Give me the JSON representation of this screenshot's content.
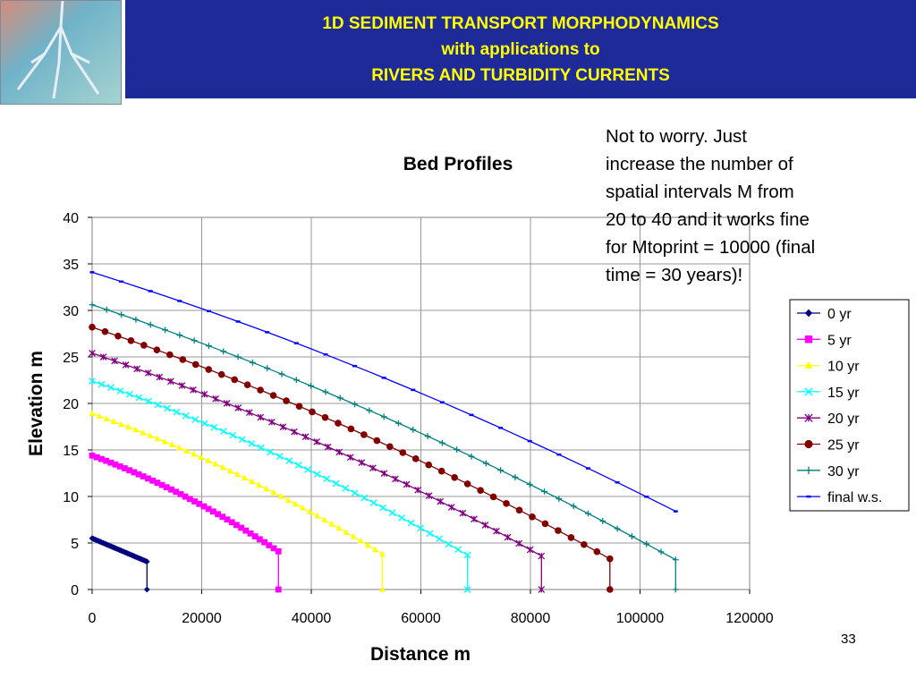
{
  "header": {
    "logo_icon": "river-delta-image",
    "title_lines": [
      "1D SEDIMENT TRANSPORT MORPHODYNAMICS",
      "with applications to",
      "RIVERS AND TURBIDITY CURRENTS"
    ],
    "colors": {
      "band": "#1f2a99",
      "title_text": "#ffff00"
    }
  },
  "note": {
    "lines": [
      "Not to worry.  Just",
      "increase the number of",
      "spatial intervals M from",
      "20 to 40 and it works fine",
      "for Mtoprint = 10000 (final",
      "time = 30 years)!"
    ]
  },
  "slide_number": "33",
  "chart_data": {
    "type": "line",
    "title": "Bed Profiles",
    "xlabel": "Distance m",
    "ylabel": "Elevation m",
    "xlim": [
      0,
      120000
    ],
    "ylim": [
      0,
      40
    ],
    "xticks": [
      0,
      20000,
      40000,
      60000,
      80000,
      100000,
      120000
    ],
    "yticks": [
      0,
      5,
      10,
      15,
      20,
      25,
      30,
      35,
      40
    ],
    "grid": true,
    "legend_position": "right",
    "series": [
      {
        "name": "0 yr",
        "color": "#000080",
        "marker": "diamond",
        "n": 40,
        "x_end": 10000,
        "y_start": 5.5,
        "y_end": 3.0,
        "curve": 0.0,
        "drop_to_zero": true
      },
      {
        "name": "5 yr",
        "color": "#ff00ff",
        "marker": "square",
        "n": 40,
        "x_end": 34000,
        "y_start": 14.4,
        "y_end": 4.1,
        "curve": 0.32,
        "drop_to_zero": true
      },
      {
        "name": "10 yr",
        "color": "#ffff00",
        "marker": "triangle",
        "n": 40,
        "x_end": 53000,
        "y_start": 18.9,
        "y_end": 3.8,
        "curve": 0.3,
        "drop_to_zero": true
      },
      {
        "name": "15 yr",
        "color": "#00ffff",
        "marker": "x",
        "n": 40,
        "x_end": 68500,
        "y_start": 22.4,
        "y_end": 3.7,
        "curve": 0.3,
        "drop_to_zero": true
      },
      {
        "name": "20 yr",
        "color": "#800080",
        "marker": "star",
        "n": 40,
        "x_end": 82000,
        "y_start": 25.4,
        "y_end": 3.6,
        "curve": 0.28,
        "drop_to_zero": true
      },
      {
        "name": "25 yr",
        "color": "#800000",
        "marker": "circle",
        "n": 40,
        "x_end": 94500,
        "y_start": 28.2,
        "y_end": 3.3,
        "curve": 0.27,
        "drop_to_zero": true
      },
      {
        "name": "30 yr",
        "color": "#008080",
        "marker": "plus",
        "n": 40,
        "x_end": 106500,
        "y_start": 30.6,
        "y_end": 3.2,
        "curve": 0.27,
        "drop_to_zero": true
      },
      {
        "name": "final w.s.",
        "color": "#0000ff",
        "marker": "dash",
        "n": 40,
        "x_end": 106500,
        "y_start": 34.1,
        "y_end": 8.4,
        "curve": 0.26,
        "drop_to_zero": false
      }
    ]
  }
}
